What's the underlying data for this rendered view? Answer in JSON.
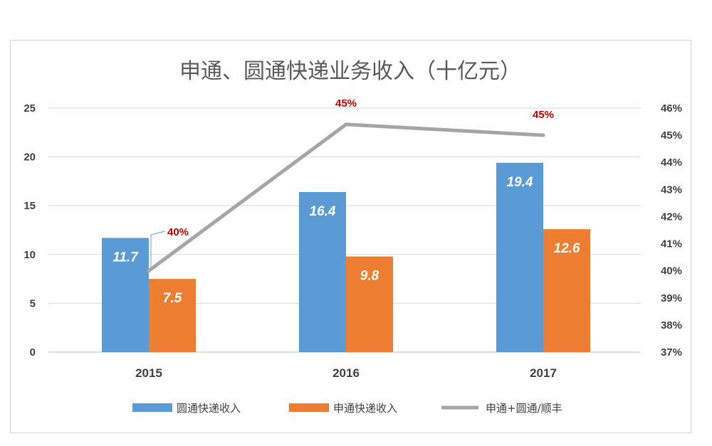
{
  "chart_data": {
    "type": "bar",
    "title": "申通、圆通快递业务收入（十亿元）",
    "categories": [
      "2015",
      "2016",
      "2017"
    ],
    "series": [
      {
        "name": "圆通快递收入",
        "kind": "bar",
        "axis": "left",
        "color": "#5b9bd5",
        "values": [
          11.7,
          16.4,
          19.4
        ],
        "labels": [
          "11.7",
          "16.4",
          "19.4"
        ]
      },
      {
        "name": "申通快递收入",
        "kind": "bar",
        "axis": "left",
        "color": "#ed7d31",
        "values": [
          7.5,
          9.8,
          12.6
        ],
        "labels": [
          "7.5",
          "9.8",
          "12.6"
        ]
      },
      {
        "name": "申通+圆通/顺丰",
        "kind": "line",
        "axis": "right",
        "color": "#a5a5a5",
        "values": [
          40,
          45.4,
          45
        ],
        "labels": [
          "40%",
          "45%",
          "45%"
        ]
      }
    ],
    "ylim": [
      0,
      25
    ],
    "yticks": [
      "0",
      "5",
      "10",
      "15",
      "20",
      "25"
    ],
    "y2lim": [
      37,
      46
    ],
    "y2ticks": [
      "37%",
      "38%",
      "39%",
      "40%",
      "41%",
      "42%",
      "43%",
      "44%",
      "45%",
      "46%"
    ],
    "legend_position": "bottom",
    "grid": true
  }
}
